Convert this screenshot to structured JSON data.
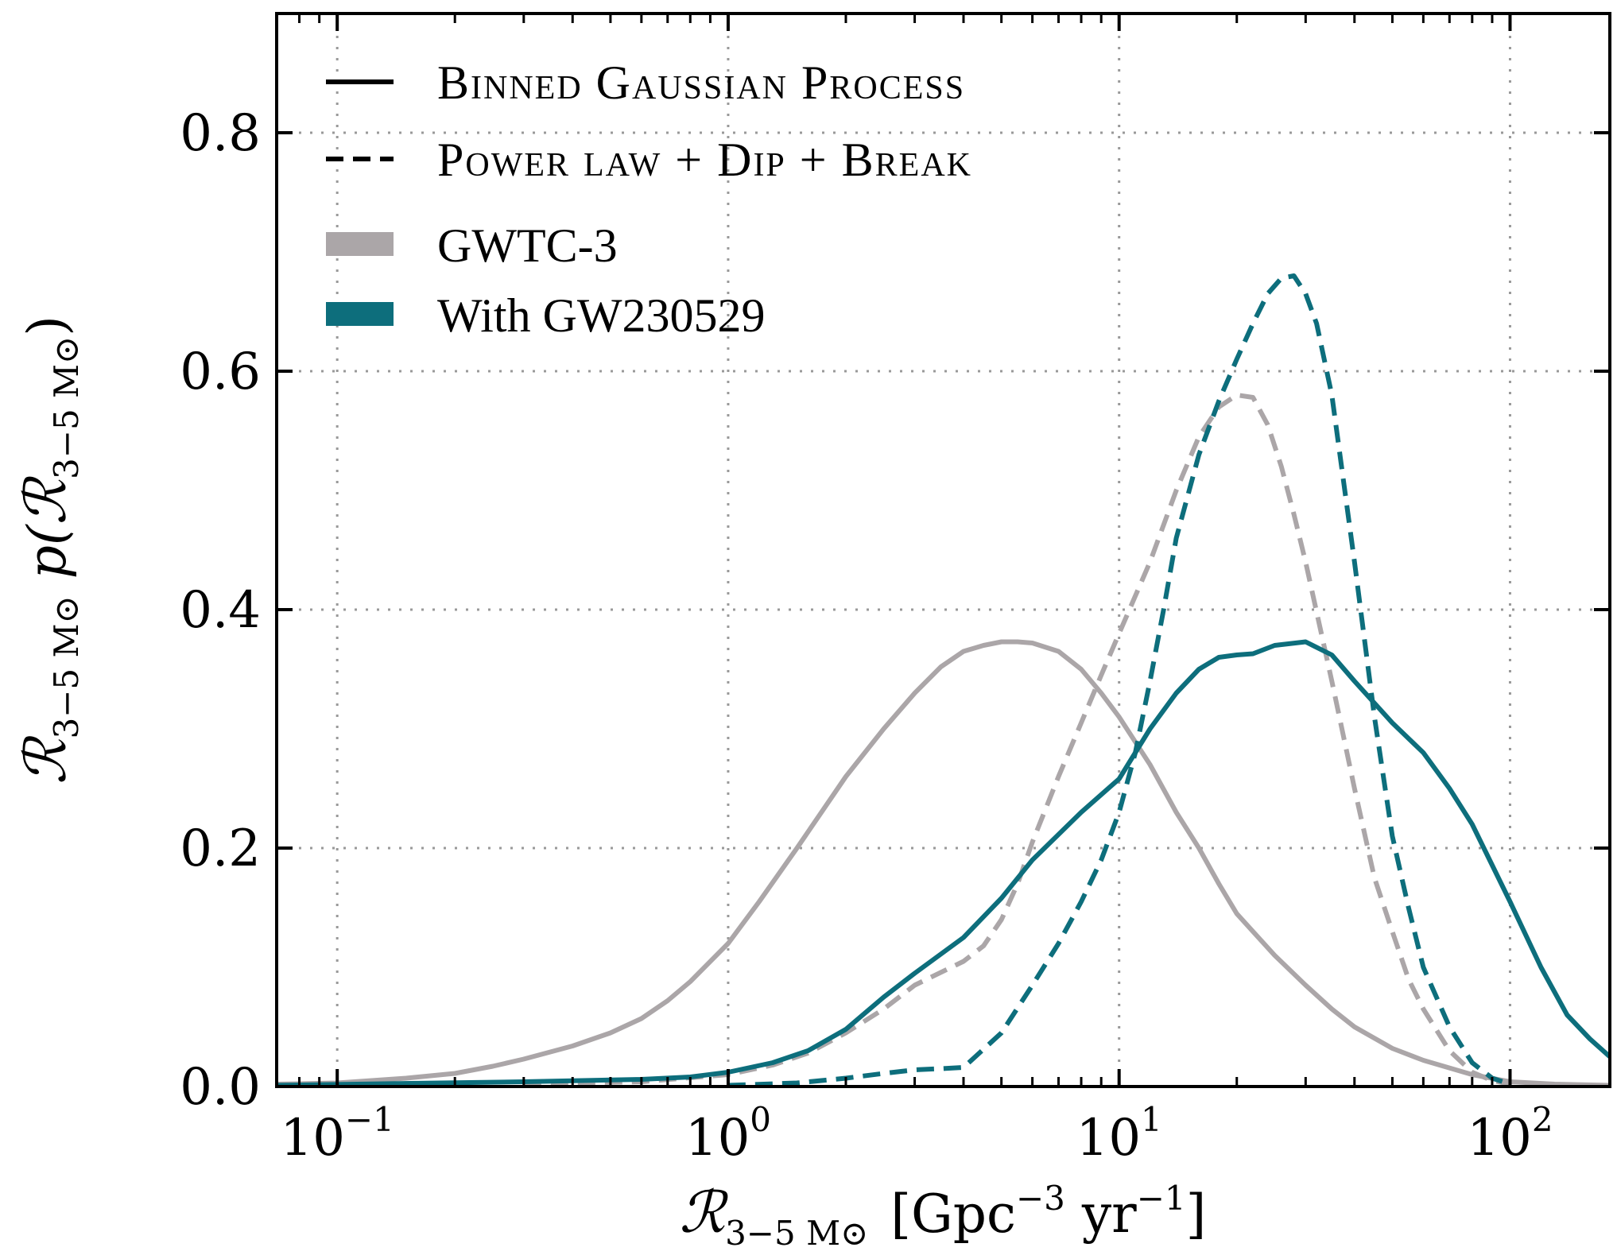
{
  "chart_data": {
    "type": "line",
    "title": "",
    "xlabel": "R_{3-5 M⊙} [Gpc^{-3} yr^{-1}]",
    "ylabel": "R_{3-5 M⊙} p(R_{3-5 M⊙})",
    "xlabel_parts": {
      "sym": "ℛ",
      "sub": "3−5 M⊙",
      "unit_open": "[Gpc",
      "exp1": "−3",
      "mid": " yr",
      "exp2": "−1",
      "unit_close": "]"
    },
    "ylabel_parts": {
      "sym": "ℛ",
      "sub": "3−5 M⊙",
      "func": " p(",
      "sym2": "ℛ",
      "sub2": "3−5 M⊙",
      "close": ")"
    },
    "xscale": "log",
    "xlim": [
      0.07,
      180
    ],
    "ylim": [
      0,
      0.9
    ],
    "grid": true,
    "yticks": [
      {
        "value": 0.0,
        "label": "0.0"
      },
      {
        "value": 0.2,
        "label": "0.2"
      },
      {
        "value": 0.4,
        "label": "0.4"
      },
      {
        "value": 0.6,
        "label": "0.6"
      },
      {
        "value": 0.8,
        "label": "0.8"
      }
    ],
    "xticks": [
      {
        "value": 0.1,
        "base": "10",
        "exp": "−1"
      },
      {
        "value": 1,
        "base": "10",
        "exp": "0"
      },
      {
        "value": 10,
        "base": "10",
        "exp": "1"
      },
      {
        "value": 100,
        "base": "10",
        "exp": "2"
      }
    ],
    "legend": {
      "position": "top-left",
      "style_entries": [
        {
          "label": "Binned Gaussian Process",
          "style": "solid"
        },
        {
          "label": "Power law + Dip + Break",
          "style": "dashed"
        }
      ],
      "color_entries": [
        {
          "label": "GWTC-3",
          "color": "#aba6a8"
        },
        {
          "label": "With GW230529",
          "color": "#0d6e7c"
        }
      ]
    },
    "series": [
      {
        "name": "GWTC-3 (Binned Gaussian Process)",
        "color": "#aba6a8",
        "style": "solid",
        "x": [
          0.07,
          0.1,
          0.15,
          0.2,
          0.25,
          0.3,
          0.4,
          0.5,
          0.6,
          0.7,
          0.8,
          1.0,
          1.2,
          1.5,
          2.0,
          2.5,
          3.0,
          3.5,
          4.0,
          4.5,
          5.0,
          5.5,
          6.0,
          7.0,
          8.0,
          9.0,
          10.0,
          12.0,
          14.0,
          16.0,
          18.0,
          20.0,
          22.0,
          25.0,
          30.0,
          35.0,
          40.0,
          50.0,
          60.0,
          80.0,
          100.0,
          130.0,
          180.0
        ],
        "y": [
          0.002,
          0.003,
          0.007,
          0.011,
          0.017,
          0.023,
          0.034,
          0.045,
          0.057,
          0.072,
          0.088,
          0.12,
          0.155,
          0.2,
          0.26,
          0.3,
          0.33,
          0.352,
          0.365,
          0.37,
          0.373,
          0.373,
          0.372,
          0.365,
          0.35,
          0.33,
          0.31,
          0.27,
          0.23,
          0.2,
          0.17,
          0.145,
          0.13,
          0.11,
          0.085,
          0.065,
          0.05,
          0.032,
          0.022,
          0.01,
          0.004,
          0.002,
          0.001
        ]
      },
      {
        "name": "With GW230529 (Binned Gaussian Process)",
        "color": "#0d6e7c",
        "style": "solid",
        "x": [
          0.07,
          0.3,
          0.6,
          0.8,
          1.0,
          1.3,
          1.6,
          2.0,
          2.5,
          3.0,
          4.0,
          5.0,
          6.0,
          8.0,
          10.0,
          12.0,
          14.0,
          16.0,
          18.0,
          20.0,
          22.0,
          25.0,
          30.0,
          35.0,
          40.0,
          50.0,
          60.0,
          70.0,
          80.0,
          100.0,
          120.0,
          140.0,
          160.0,
          180.0
        ],
        "y": [
          0.001,
          0.004,
          0.006,
          0.008,
          0.012,
          0.02,
          0.03,
          0.048,
          0.075,
          0.095,
          0.125,
          0.158,
          0.19,
          0.23,
          0.258,
          0.3,
          0.33,
          0.35,
          0.36,
          0.362,
          0.363,
          0.37,
          0.373,
          0.362,
          0.34,
          0.305,
          0.28,
          0.25,
          0.22,
          0.155,
          0.1,
          0.06,
          0.04,
          0.025
        ]
      },
      {
        "name": "GWTC-3 (Power law + Dip + Break)",
        "color": "#aba6a8",
        "style": "dashed",
        "x": [
          0.3,
          0.6,
          1.0,
          1.3,
          1.6,
          2.0,
          2.5,
          3.0,
          4.0,
          4.5,
          5.0,
          5.5,
          6.0,
          7.0,
          8.0,
          9.0,
          10.0,
          12.0,
          14.0,
          16.0,
          18.0,
          20.0,
          22.0,
          24.0,
          26.0,
          28.0,
          30.0,
          35.0,
          40.0,
          45.0,
          50.0,
          55.0,
          60.0,
          70.0,
          80.0,
          90.0,
          100.0
        ],
        "y": [
          0.002,
          0.004,
          0.01,
          0.018,
          0.028,
          0.045,
          0.065,
          0.085,
          0.105,
          0.118,
          0.14,
          0.17,
          0.205,
          0.26,
          0.305,
          0.345,
          0.38,
          0.44,
          0.5,
          0.545,
          0.57,
          0.58,
          0.578,
          0.555,
          0.52,
          0.48,
          0.44,
          0.34,
          0.25,
          0.175,
          0.13,
          0.09,
          0.065,
          0.03,
          0.012,
          0.005,
          0.002
        ]
      },
      {
        "name": "With GW230529 (Power law + Dip + Break)",
        "color": "#0d6e7c",
        "style": "dashed",
        "x": [
          1.0,
          1.5,
          2.0,
          2.5,
          3.0,
          3.5,
          4.0,
          5.0,
          6.0,
          7.0,
          8.0,
          9.0,
          10.0,
          11.0,
          12.0,
          13.0,
          14.0,
          16.0,
          18.0,
          20.0,
          22.0,
          24.0,
          26.0,
          28.0,
          30.0,
          32.0,
          35.0,
          40.0,
          45.0,
          50.0,
          55.0,
          60.0,
          70.0,
          80.0,
          90.0,
          100.0
        ],
        "y": [
          0.001,
          0.003,
          0.007,
          0.011,
          0.014,
          0.015,
          0.016,
          0.045,
          0.085,
          0.12,
          0.155,
          0.19,
          0.23,
          0.28,
          0.34,
          0.4,
          0.46,
          0.53,
          0.575,
          0.61,
          0.64,
          0.665,
          0.678,
          0.68,
          0.665,
          0.64,
          0.58,
          0.44,
          0.31,
          0.21,
          0.15,
          0.1,
          0.05,
          0.02,
          0.007,
          0.002
        ]
      }
    ]
  }
}
